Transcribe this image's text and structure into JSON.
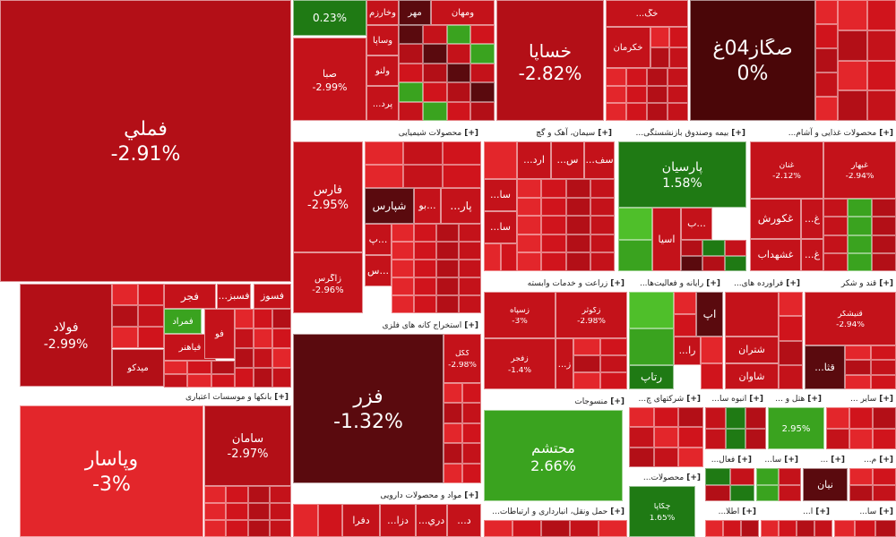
{
  "colors": {
    "down_strong": "#b30f17",
    "down": "#c4121a",
    "down_mid": "#d0141c",
    "down_light": "#e3262b",
    "dark": "#5a0a0e",
    "darker": "#3c0708",
    "flat": "#4a0608",
    "up_dark": "#1f7a14",
    "up": "#3aa31f",
    "up_light": "#4fbf2a",
    "header_bg": "#ffffff"
  },
  "sectors": [
    {
      "name": "بانکها و موسسات اعتباری",
      "toggle": "[+]"
    },
    {
      "name": "محصولات شیمیایی",
      "toggle": "[+]"
    },
    {
      "name": "استخراج کانه های فلزی",
      "toggle": "[+]"
    },
    {
      "name": "مواد و محصولات دارویی",
      "toggle": "[+]"
    },
    {
      "name": "سیمان، آهک و گچ",
      "toggle": "[+]"
    },
    {
      "name": "...بیمه وصندوق بازنشستگی",
      "toggle": "[+]"
    },
    {
      "name": "...محصولات غذایی و آشام",
      "toggle": "[+]"
    },
    {
      "name": "زراعت و خدمات وابسته",
      "toggle": "[+]"
    },
    {
      "name": "...رایانه و فعالیت‌ها",
      "toggle": "[+]"
    },
    {
      "name": "...فراورده های",
      "toggle": "[+]"
    },
    {
      "name": "قند و شکر",
      "toggle": "[+]"
    },
    {
      "name": "منسوجات",
      "toggle": "[+]"
    },
    {
      "name": "...شرکتهای چ",
      "toggle": "[+]"
    },
    {
      "name": "...انبوه سا",
      "toggle": "[+]"
    },
    {
      "name": "... هتل و",
      "toggle": "[+]"
    },
    {
      "name": "... سایر",
      "toggle": "[+]"
    },
    {
      "name": "...محصولات",
      "toggle": "[+]"
    },
    {
      "name": "...فعال",
      "toggle": "[+]"
    },
    {
      "name": "...سا",
      "toggle": "[+]"
    },
    {
      "name": "...",
      "toggle": "[+]"
    },
    {
      "name": "...م",
      "toggle": "[+]"
    },
    {
      "name": "...حمل ونقل، انبارداری و ارتباطات",
      "toggle": "[+]"
    },
    {
      "name": "...اطلا",
      "toggle": "[+]"
    },
    {
      "name": "...ا",
      "toggle": "[+]"
    },
    {
      "name": "...سا",
      "toggle": "[+]"
    }
  ],
  "tiles": {
    "fameli": {
      "name": "فملي",
      "pct": "-2.91%"
    },
    "khasapa": {
      "name": "خساپا",
      "pct": "-2.82%"
    },
    "sgaz": {
      "name": "صگاز04غ",
      "pct": "0%"
    },
    "folad": {
      "name": "فولاد",
      "pct": "-2.99%"
    },
    "fajr": {
      "name": "فجر"
    },
    "fasabz": {
      "name": "...فسبز"
    },
    "fasoz": {
      "name": "فسوز"
    },
    "fameraad": {
      "name": "فمراد"
    },
    "fo": {
      "name": "فو"
    },
    "mido": {
      "name": "ميدكو"
    },
    "fabahnar": {
      "name": "فباهنر"
    },
    "vapasar": {
      "name": "وپاسار",
      "pct": "-3%"
    },
    "saman": {
      "name": "سامان",
      "pct": "-2.97%"
    },
    "fars": {
      "name": "فارس",
      "pct": "-2.95%"
    },
    "shapars": {
      "name": "شپارس"
    },
    "par": {
      "name": "...پار"
    },
    "bo": {
      "name": "بو..."
    },
    "p": {
      "name": "پ..."
    },
    "s": {
      "name": "س..."
    },
    "zagros": {
      "name": "زاگرس",
      "pct": "-2.96%"
    },
    "fazar": {
      "name": "فزر",
      "pct": "-1.32%"
    },
    "kegol": {
      "name": "كگل",
      "pct": "-2.98%"
    },
    "parsian": {
      "name": "پارسيان",
      "pct": "1.58%"
    },
    "asia": {
      "name": "آسيا"
    },
    "b": {
      "name": "ب..."
    },
    "moh": {
      "name": "محتشم",
      "pct": "2.66%"
    },
    "dafra": {
      "name": "دفرا"
    },
    "dza": {
      "name": "...دزا"
    },
    "dri": {
      "name": "...دري"
    },
    "d": {
      "name": "...د"
    },
    "ghakorosh": {
      "name": "غكورش"
    },
    "ghshahdab": {
      "name": "غشهداب"
    },
    "ghnan": {
      "name": "غنان",
      "pct": "-2.12%"
    },
    "gh1": {
      "name": "...غ"
    },
    "gh2": {
      "name": "...غ"
    },
    "ghbeh": {
      "name": "غبهار",
      "pct": "-2.94%"
    },
    "ap": {
      "name": "آپ"
    },
    "ratap": {
      "name": "رتاپ"
    },
    "ra": {
      "name": "...را"
    },
    "shetran": {
      "name": "شتران"
    },
    "shavan": {
      "name": "شاوان"
    },
    "ghta": {
      "name": "...قثا"
    },
    "ghnishk": {
      "name": "قنیشکر",
      "pct": "-2.94%"
    },
    "z": {
      "name": "...ز"
    },
    "zfajr": {
      "name": "زفجر",
      "pct": "-1.4%"
    },
    "zsepahan": {
      "name": "زسپاه",
      "pct": "-3%"
    },
    "zkosar": {
      "name": "زکوثر",
      "pct": "-2.98%"
    },
    "ara": {
      "name": "...ارد"
    },
    "sa1": {
      "name": "...سا"
    },
    "sa2": {
      "name": "...سا"
    },
    "sas": {
      "name": "...س"
    },
    "sfa": {
      "name": "...سف"
    },
    "mehr": {
      "name": "مهر"
    },
    "vkharazm": {
      "name": "وخارزم"
    },
    "vsapa": {
      "name": "وساپا"
    },
    "vmahan": {
      "name": "ومهان"
    },
    "saba": {
      "name": "صبا",
      "pct": "-2.99%"
    },
    "valno": {
      "name": "ولنو"
    },
    "perd": {
      "name": "...پرد"
    },
    "top_small_pct": {
      "pct": "0.23%"
    },
    "khag": {
      "name": "...خگ"
    },
    "khekrman": {
      "name": "خكرمان"
    },
    "chekapa": {
      "name": "چكاپا",
      "pct": "1.65%"
    },
    "niyan": {
      "name": "نيان"
    },
    "kian": {
      "pct": "2.95%"
    }
  }
}
